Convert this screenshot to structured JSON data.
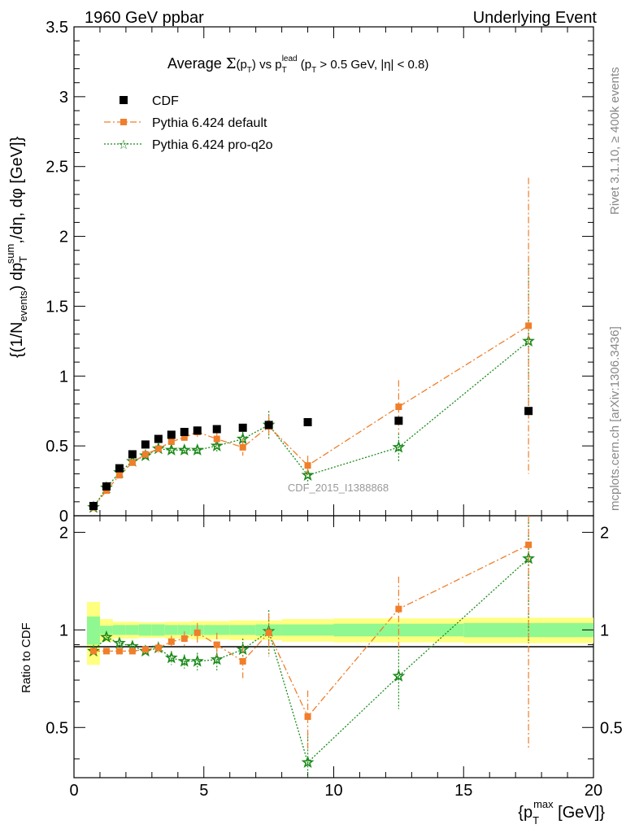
{
  "header": {
    "left": "1960 GeV ppbar",
    "right": "Underlying Event"
  },
  "chart_data": {
    "type": "scatter",
    "title_parts": [
      "Average ",
      "Σ",
      "(p",
      "T",
      ") vs p",
      "T",
      "lead",
      " (p",
      "T",
      " > 0.5 GeV, |η| < 0.8)"
    ],
    "ylabel_parts": [
      "{(1/N",
      "events",
      ") dp",
      "T",
      "sum",
      ",/dη, dφ [GeV]}"
    ],
    "xlabel_parts": [
      "{p",
      "T",
      "max",
      " [GeV]}"
    ],
    "ratio_ylabel": "Ratio to CDF",
    "side_label_top": "Rivet 3.1.10, ≥ 400k events",
    "side_label_bottom": "mcplots.cern.ch [arXiv:1306.3436]",
    "analysis_id": "CDF_2015_I1388868",
    "xlim": [
      0,
      20
    ],
    "ylim": [
      0,
      3.5
    ],
    "ratio_ylim": [
      0.35,
      2.25
    ],
    "x_ticks": [
      "0",
      "5",
      "10",
      "15",
      "20"
    ],
    "y_ticks": [
      "0",
      "0.5",
      "1",
      "1.5",
      "2",
      "2.5",
      "3",
      "3.5"
    ],
    "ratio_ticks": [
      "0.5",
      "1",
      "2"
    ],
    "legend": [
      "CDF",
      "Pythia 6.424 default",
      "Pythia 6.424 pro-q2o"
    ],
    "legend_position": "top-left",
    "colors": {
      "data": "#000000",
      "default": "#f07e2a",
      "proq2o": "#1a8a1a",
      "band_inner": "#90f890",
      "band_outer": "#ffff80"
    },
    "x": [
      0.75,
      1.25,
      1.75,
      2.25,
      2.75,
      3.25,
      3.75,
      4.25,
      4.75,
      5.5,
      6.5,
      7.5,
      9.0,
      12.5,
      17.5
    ],
    "series": [
      {
        "name": "CDF",
        "values": [
          0.07,
          0.21,
          0.34,
          0.44,
          0.51,
          0.55,
          0.58,
          0.6,
          0.61,
          0.62,
          0.63,
          0.65,
          0.67,
          0.68,
          0.75
        ]
      },
      {
        "name": "Pythia 6.424 default",
        "values": [
          0.06,
          0.18,
          0.29,
          0.38,
          0.44,
          0.48,
          0.53,
          0.56,
          0.6,
          0.55,
          0.49,
          0.64,
          0.36,
          0.78,
          1.36
        ],
        "errors": [
          0.005,
          0.01,
          0.01,
          0.01,
          0.015,
          0.02,
          0.025,
          0.03,
          0.04,
          0.05,
          0.06,
          0.08,
          0.07,
          0.19,
          1.06
        ]
      },
      {
        "name": "Pythia 6.424 pro-q2o",
        "values": [
          0.06,
          0.2,
          0.31,
          0.39,
          0.43,
          0.48,
          0.47,
          0.47,
          0.47,
          0.5,
          0.55,
          0.65,
          0.29,
          0.49,
          1.25
        ],
        "errors": [
          0.005,
          0.01,
          0.01,
          0.01,
          0.015,
          0.015,
          0.02,
          0.025,
          0.03,
          0.04,
          0.05,
          0.1,
          0.06,
          0.1,
          0.55
        ]
      }
    ],
    "ratios": [
      {
        "name": "Pythia 6.424 default",
        "values": [
          0.86,
          0.86,
          0.86,
          0.86,
          0.87,
          0.88,
          0.92,
          0.94,
          0.98,
          0.9,
          0.8,
          0.98,
          0.54,
          1.16,
          1.83
        ],
        "errors": [
          0.01,
          0.01,
          0.01,
          0.02,
          0.02,
          0.03,
          0.04,
          0.05,
          0.07,
          0.08,
          0.09,
          0.14,
          0.11,
          0.3,
          1.4
        ]
      },
      {
        "name": "Pythia 6.424 pro-q2o",
        "values": [
          0.86,
          0.95,
          0.91,
          0.89,
          0.86,
          0.88,
          0.82,
          0.8,
          0.8,
          0.81,
          0.87,
          0.99,
          0.39,
          0.72,
          1.66
        ],
        "errors": [
          0.01,
          0.01,
          0.01,
          0.02,
          0.02,
          0.03,
          0.04,
          0.04,
          0.05,
          0.06,
          0.07,
          0.16,
          0.09,
          0.15,
          0.75
        ]
      }
    ],
    "ratio_band": {
      "edges": [
        0.5,
        1.0,
        1.5,
        2.0,
        2.5,
        3.0,
        3.5,
        4.0,
        4.5,
        5.0,
        6.0,
        7.0,
        8.0,
        10.0,
        15.0,
        20.0
      ],
      "inner": [
        0.1,
        0.03,
        0.035,
        0.035,
        0.04,
        0.04,
        0.035,
        0.035,
        0.035,
        0.035,
        0.035,
        0.04,
        0.04,
        0.045,
        0.05
      ],
      "outer": [
        0.22,
        0.08,
        0.06,
        0.06,
        0.055,
        0.055,
        0.06,
        0.06,
        0.065,
        0.065,
        0.07,
        0.07,
        0.08,
        0.085,
        0.09
      ]
    }
  }
}
